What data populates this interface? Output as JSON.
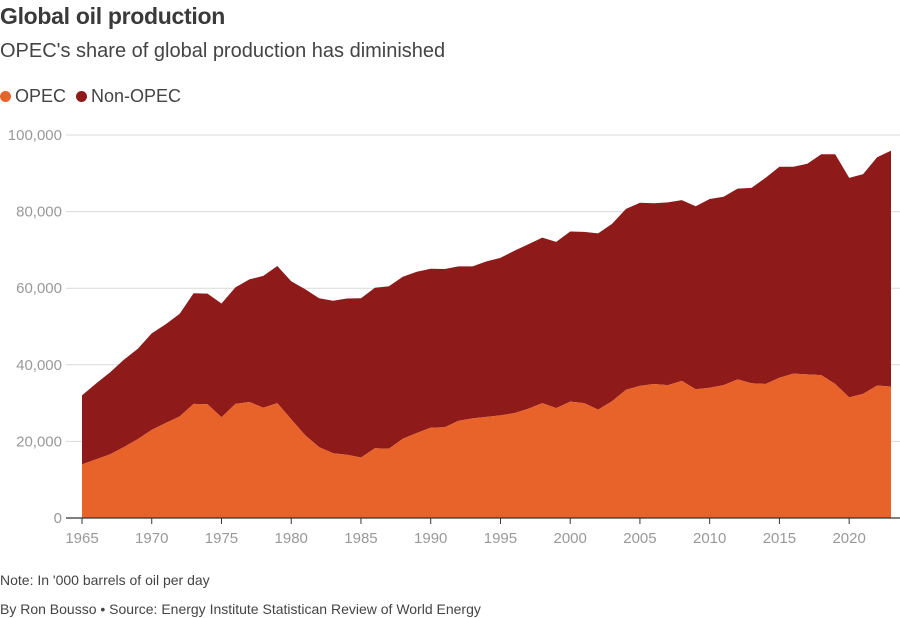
{
  "colors": {
    "opec": "#e8632a",
    "non_opec": "#8e1a1a",
    "grid": "#d9d9d9",
    "axis": "#333333"
  },
  "chart_data": {
    "type": "area",
    "stacked": true,
    "title": "Global oil production",
    "subtitle": "OPEC's share of global production has diminished",
    "xlabel": "",
    "ylabel": "",
    "xlim": [
      1965,
      2023
    ],
    "ylim": [
      0,
      100000
    ],
    "x_ticks": [
      "1965",
      "1970",
      "1975",
      "1980",
      "1985",
      "1990",
      "1995",
      "2000",
      "2005",
      "2010",
      "2015",
      "2020"
    ],
    "y_ticks": [
      "0",
      "20,000",
      "40,000",
      "60,000",
      "80,000",
      "100,000"
    ],
    "legend_position": "top-left",
    "grid": "horizontal",
    "x": [
      1965,
      1966,
      1967,
      1968,
      1969,
      1970,
      1971,
      1972,
      1973,
      1974,
      1975,
      1976,
      1977,
      1978,
      1979,
      1980,
      1981,
      1982,
      1983,
      1984,
      1985,
      1986,
      1987,
      1988,
      1989,
      1990,
      1991,
      1992,
      1993,
      1994,
      1995,
      1996,
      1997,
      1998,
      1999,
      2000,
      2001,
      2002,
      2003,
      2004,
      2005,
      2006,
      2007,
      2008,
      2009,
      2010,
      2011,
      2012,
      2013,
      2014,
      2015,
      2016,
      2017,
      2018,
      2019,
      2020,
      2021,
      2022,
      2023
    ],
    "series": [
      {
        "name": "OPEC",
        "color": "#e8632a",
        "values": [
          14000,
          15300,
          16600,
          18500,
          20600,
          23000,
          24800,
          26500,
          29800,
          29700,
          26300,
          29800,
          30300,
          28800,
          30000,
          25800,
          21600,
          18500,
          16900,
          16500,
          15800,
          18200,
          18100,
          20700,
          22200,
          23600,
          23700,
          25400,
          26000,
          26400,
          26800,
          27400,
          28500,
          30000,
          28700,
          30400,
          30000,
          28300,
          30500,
          33500,
          34500,
          35000,
          34700,
          35800,
          33600,
          34000,
          34700,
          36200,
          35200,
          35000,
          36600,
          37700,
          37500,
          37300,
          35000,
          31500,
          32400,
          34600,
          34300
        ]
      },
      {
        "name": "Non-OPEC",
        "color": "#8e1a1a",
        "values": [
          18000,
          19800,
          21400,
          22800,
          23600,
          25200,
          25800,
          26800,
          28900,
          28900,
          29700,
          30400,
          32000,
          34400,
          35800,
          36000,
          38100,
          38900,
          39800,
          40800,
          41600,
          41900,
          42400,
          42300,
          42100,
          41500,
          41300,
          40300,
          39700,
          40600,
          41100,
          42400,
          43000,
          43200,
          43400,
          44400,
          44700,
          46000,
          46300,
          47200,
          47800,
          47200,
          47700,
          47200,
          47800,
          49300,
          49200,
          49800,
          51000,
          53800,
          55100,
          54000,
          55000,
          57700,
          60000,
          57300,
          57400,
          59600,
          61600
        ]
      }
    ]
  },
  "footer": {
    "note": "Note: In '000 barrels of oil per day",
    "byline": "By Ron Bousso • Source: Energy Institute Statistican Review of World Energy"
  }
}
